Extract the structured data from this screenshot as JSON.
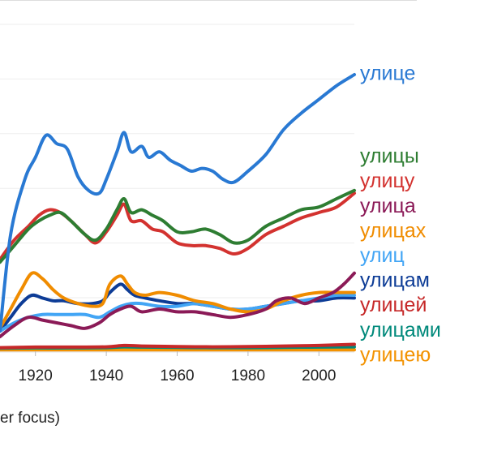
{
  "chart_data": {
    "type": "line",
    "xlim": [
      1910,
      2010
    ],
    "ylim": [
      0,
      1
    ],
    "x_ticks": [
      "1920",
      "1940",
      "1960",
      "1980",
      "2000"
    ],
    "grid": "horizontal",
    "legend_position": "right-inline",
    "series": [
      {
        "name": "улице",
        "color": "#2979d3",
        "points": [
          [
            1910,
            0.07
          ],
          [
            1913,
            0.42
          ],
          [
            1917,
            0.62
          ],
          [
            1920,
            0.7
          ],
          [
            1923,
            0.78
          ],
          [
            1926,
            0.75
          ],
          [
            1929,
            0.73
          ],
          [
            1932,
            0.63
          ],
          [
            1935,
            0.58
          ],
          [
            1938,
            0.57
          ],
          [
            1940,
            0.62
          ],
          [
            1943,
            0.72
          ],
          [
            1945,
            0.79
          ],
          [
            1947,
            0.72
          ],
          [
            1950,
            0.74
          ],
          [
            1952,
            0.7
          ],
          [
            1955,
            0.72
          ],
          [
            1958,
            0.69
          ],
          [
            1961,
            0.67
          ],
          [
            1964,
            0.65
          ],
          [
            1967,
            0.66
          ],
          [
            1970,
            0.65
          ],
          [
            1973,
            0.62
          ],
          [
            1976,
            0.61
          ],
          [
            1980,
            0.65
          ],
          [
            1985,
            0.71
          ],
          [
            1990,
            0.8
          ],
          [
            1995,
            0.86
          ],
          [
            2000,
            0.91
          ],
          [
            2005,
            0.96
          ],
          [
            2010,
            1.0
          ]
        ]
      },
      {
        "name": "улицы",
        "color": "#2e7d32",
        "points": [
          [
            1910,
            0.32
          ],
          [
            1914,
            0.38
          ],
          [
            1918,
            0.44
          ],
          [
            1921,
            0.47
          ],
          [
            1924,
            0.49
          ],
          [
            1927,
            0.5
          ],
          [
            1930,
            0.47
          ],
          [
            1934,
            0.42
          ],
          [
            1937,
            0.4
          ],
          [
            1940,
            0.44
          ],
          [
            1943,
            0.51
          ],
          [
            1945,
            0.55
          ],
          [
            1947,
            0.5
          ],
          [
            1950,
            0.51
          ],
          [
            1953,
            0.49
          ],
          [
            1956,
            0.47
          ],
          [
            1960,
            0.43
          ],
          [
            1964,
            0.43
          ],
          [
            1968,
            0.44
          ],
          [
            1972,
            0.42
          ],
          [
            1976,
            0.39
          ],
          [
            1980,
            0.4
          ],
          [
            1985,
            0.45
          ],
          [
            1990,
            0.48
          ],
          [
            1995,
            0.51
          ],
          [
            2000,
            0.52
          ],
          [
            2005,
            0.55
          ],
          [
            2010,
            0.58
          ]
        ]
      },
      {
        "name": "улицу",
        "color": "#d3322f",
        "points": [
          [
            1910,
            0.33
          ],
          [
            1914,
            0.4
          ],
          [
            1918,
            0.45
          ],
          [
            1921,
            0.49
          ],
          [
            1924,
            0.51
          ],
          [
            1927,
            0.5
          ],
          [
            1930,
            0.47
          ],
          [
            1934,
            0.42
          ],
          [
            1937,
            0.39
          ],
          [
            1940,
            0.43
          ],
          [
            1943,
            0.49
          ],
          [
            1945,
            0.53
          ],
          [
            1947,
            0.47
          ],
          [
            1950,
            0.47
          ],
          [
            1953,
            0.44
          ],
          [
            1956,
            0.43
          ],
          [
            1960,
            0.39
          ],
          [
            1964,
            0.38
          ],
          [
            1968,
            0.38
          ],
          [
            1972,
            0.37
          ],
          [
            1976,
            0.35
          ],
          [
            1980,
            0.37
          ],
          [
            1985,
            0.42
          ],
          [
            1990,
            0.45
          ],
          [
            1995,
            0.48
          ],
          [
            2000,
            0.5
          ],
          [
            2005,
            0.52
          ],
          [
            2010,
            0.57
          ]
        ]
      },
      {
        "name": "улица",
        "color": "#8b1a57",
        "points": [
          [
            1910,
            0.05
          ],
          [
            1914,
            0.09
          ],
          [
            1918,
            0.12
          ],
          [
            1922,
            0.11
          ],
          [
            1926,
            0.1
          ],
          [
            1930,
            0.09
          ],
          [
            1934,
            0.08
          ],
          [
            1938,
            0.1
          ],
          [
            1941,
            0.13
          ],
          [
            1944,
            0.15
          ],
          [
            1947,
            0.16
          ],
          [
            1950,
            0.14
          ],
          [
            1955,
            0.15
          ],
          [
            1960,
            0.14
          ],
          [
            1965,
            0.14
          ],
          [
            1970,
            0.13
          ],
          [
            1975,
            0.12
          ],
          [
            1980,
            0.13
          ],
          [
            1985,
            0.15
          ],
          [
            1988,
            0.18
          ],
          [
            1992,
            0.19
          ],
          [
            1996,
            0.17
          ],
          [
            2000,
            0.19
          ],
          [
            2004,
            0.21
          ],
          [
            2007,
            0.24
          ],
          [
            2010,
            0.28
          ]
        ]
      },
      {
        "name": "улицах",
        "color": "#f08c00",
        "points": [
          [
            1910,
            0.08
          ],
          [
            1913,
            0.15
          ],
          [
            1916,
            0.22
          ],
          [
            1919,
            0.28
          ],
          [
            1922,
            0.26
          ],
          [
            1925,
            0.22
          ],
          [
            1928,
            0.19
          ],
          [
            1932,
            0.17
          ],
          [
            1936,
            0.16
          ],
          [
            1939,
            0.17
          ],
          [
            1941,
            0.24
          ],
          [
            1944,
            0.27
          ],
          [
            1946,
            0.24
          ],
          [
            1948,
            0.21
          ],
          [
            1951,
            0.2
          ],
          [
            1955,
            0.21
          ],
          [
            1960,
            0.2
          ],
          [
            1965,
            0.18
          ],
          [
            1970,
            0.17
          ],
          [
            1975,
            0.15
          ],
          [
            1980,
            0.14
          ],
          [
            1985,
            0.15
          ],
          [
            1990,
            0.18
          ],
          [
            1995,
            0.2
          ],
          [
            2000,
            0.21
          ],
          [
            2005,
            0.21
          ],
          [
            2010,
            0.21
          ]
        ]
      },
      {
        "name": "улиц",
        "color": "#42a5f5",
        "points": [
          [
            1910,
            0.07
          ],
          [
            1914,
            0.1
          ],
          [
            1918,
            0.12
          ],
          [
            1922,
            0.13
          ],
          [
            1926,
            0.13
          ],
          [
            1930,
            0.13
          ],
          [
            1934,
            0.13
          ],
          [
            1938,
            0.12
          ],
          [
            1941,
            0.14
          ],
          [
            1944,
            0.16
          ],
          [
            1947,
            0.17
          ],
          [
            1950,
            0.17
          ],
          [
            1955,
            0.16
          ],
          [
            1960,
            0.16
          ],
          [
            1965,
            0.17
          ],
          [
            1970,
            0.16
          ],
          [
            1975,
            0.15
          ],
          [
            1980,
            0.15
          ],
          [
            1985,
            0.16
          ],
          [
            1990,
            0.17
          ],
          [
            1995,
            0.18
          ],
          [
            2000,
            0.19
          ],
          [
            2005,
            0.2
          ],
          [
            2010,
            0.2
          ]
        ]
      },
      {
        "name": "улицам",
        "color": "#0d3c96",
        "points": [
          [
            1910,
            0.07
          ],
          [
            1913,
            0.12
          ],
          [
            1916,
            0.17
          ],
          [
            1919,
            0.2
          ],
          [
            1922,
            0.19
          ],
          [
            1925,
            0.18
          ],
          [
            1928,
            0.18
          ],
          [
            1932,
            0.17
          ],
          [
            1936,
            0.17
          ],
          [
            1939,
            0.18
          ],
          [
            1941,
            0.21
          ],
          [
            1944,
            0.24
          ],
          [
            1946,
            0.22
          ],
          [
            1948,
            0.2
          ],
          [
            1951,
            0.19
          ],
          [
            1955,
            0.18
          ],
          [
            1960,
            0.17
          ],
          [
            1965,
            0.17
          ],
          [
            1970,
            0.16
          ],
          [
            1975,
            0.15
          ],
          [
            1980,
            0.15
          ],
          [
            1985,
            0.16
          ],
          [
            1990,
            0.17
          ],
          [
            1995,
            0.18
          ],
          [
            2000,
            0.18
          ],
          [
            2005,
            0.19
          ],
          [
            2010,
            0.19
          ]
        ]
      },
      {
        "name": "улицей",
        "color": "#c62828",
        "points": [
          [
            1910,
            0.01
          ],
          [
            1920,
            0.012
          ],
          [
            1930,
            0.012
          ],
          [
            1940,
            0.013
          ],
          [
            1945,
            0.018
          ],
          [
            1950,
            0.016
          ],
          [
            1960,
            0.014
          ],
          [
            1970,
            0.013
          ],
          [
            1980,
            0.014
          ],
          [
            1990,
            0.016
          ],
          [
            2000,
            0.018
          ],
          [
            2010,
            0.022
          ]
        ]
      },
      {
        "name": "улицами",
        "color": "#00897b",
        "points": [
          [
            1910,
            0.008
          ],
          [
            1920,
            0.009
          ],
          [
            1930,
            0.009
          ],
          [
            1940,
            0.01
          ],
          [
            1945,
            0.013
          ],
          [
            1950,
            0.012
          ],
          [
            1960,
            0.011
          ],
          [
            1970,
            0.01
          ],
          [
            1980,
            0.01
          ],
          [
            1990,
            0.011
          ],
          [
            2000,
            0.012
          ],
          [
            2010,
            0.013
          ]
        ]
      },
      {
        "name": "улицею",
        "color": "#f39200",
        "points": [
          [
            1910,
            0.002
          ],
          [
            1930,
            0.002
          ],
          [
            1950,
            0.002
          ],
          [
            1970,
            0.002
          ],
          [
            1990,
            0.002
          ],
          [
            2010,
            0.002
          ]
        ]
      }
    ]
  },
  "caption": "er focus)"
}
